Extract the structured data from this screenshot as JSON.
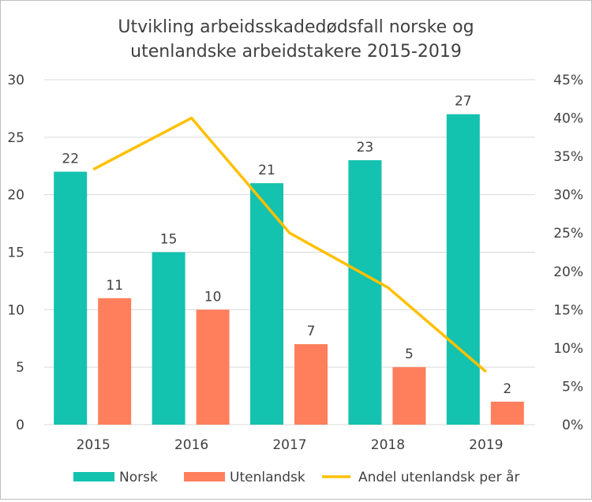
{
  "chart_data": {
    "type": "bar+line",
    "title_lines": [
      "Utvikling arbeidsskadedødsfall norske og",
      "utenlandske arbeidstakere 2015-2019"
    ],
    "categories": [
      "2015",
      "2016",
      "2017",
      "2018",
      "2019"
    ],
    "series": [
      {
        "name": "Norsk",
        "type": "bar",
        "axis": "left",
        "color": "#13C2AF",
        "values": [
          22,
          15,
          21,
          23,
          27
        ]
      },
      {
        "name": "Utenlandsk",
        "type": "bar",
        "axis": "left",
        "color": "#FF7F5C",
        "values": [
          11,
          10,
          7,
          5,
          2
        ]
      },
      {
        "name": "Andel utenlandsk per år",
        "type": "line",
        "axis": "right",
        "color": "#FFC000",
        "values": [
          33.3,
          40.0,
          25.0,
          17.9,
          6.9
        ]
      }
    ],
    "left_axis": {
      "ylim": [
        0,
        30
      ],
      "ticks": [
        "0",
        "5",
        "10",
        "15",
        "20",
        "25",
        "30"
      ]
    },
    "right_axis": {
      "ylim": [
        0,
        45
      ],
      "ticks": [
        "0%",
        "5%",
        "10%",
        "15%",
        "20%",
        "25%",
        "30%",
        "35%",
        "40%",
        "45%"
      ]
    },
    "grid": true,
    "legend": "bottom",
    "data_labels": true
  }
}
